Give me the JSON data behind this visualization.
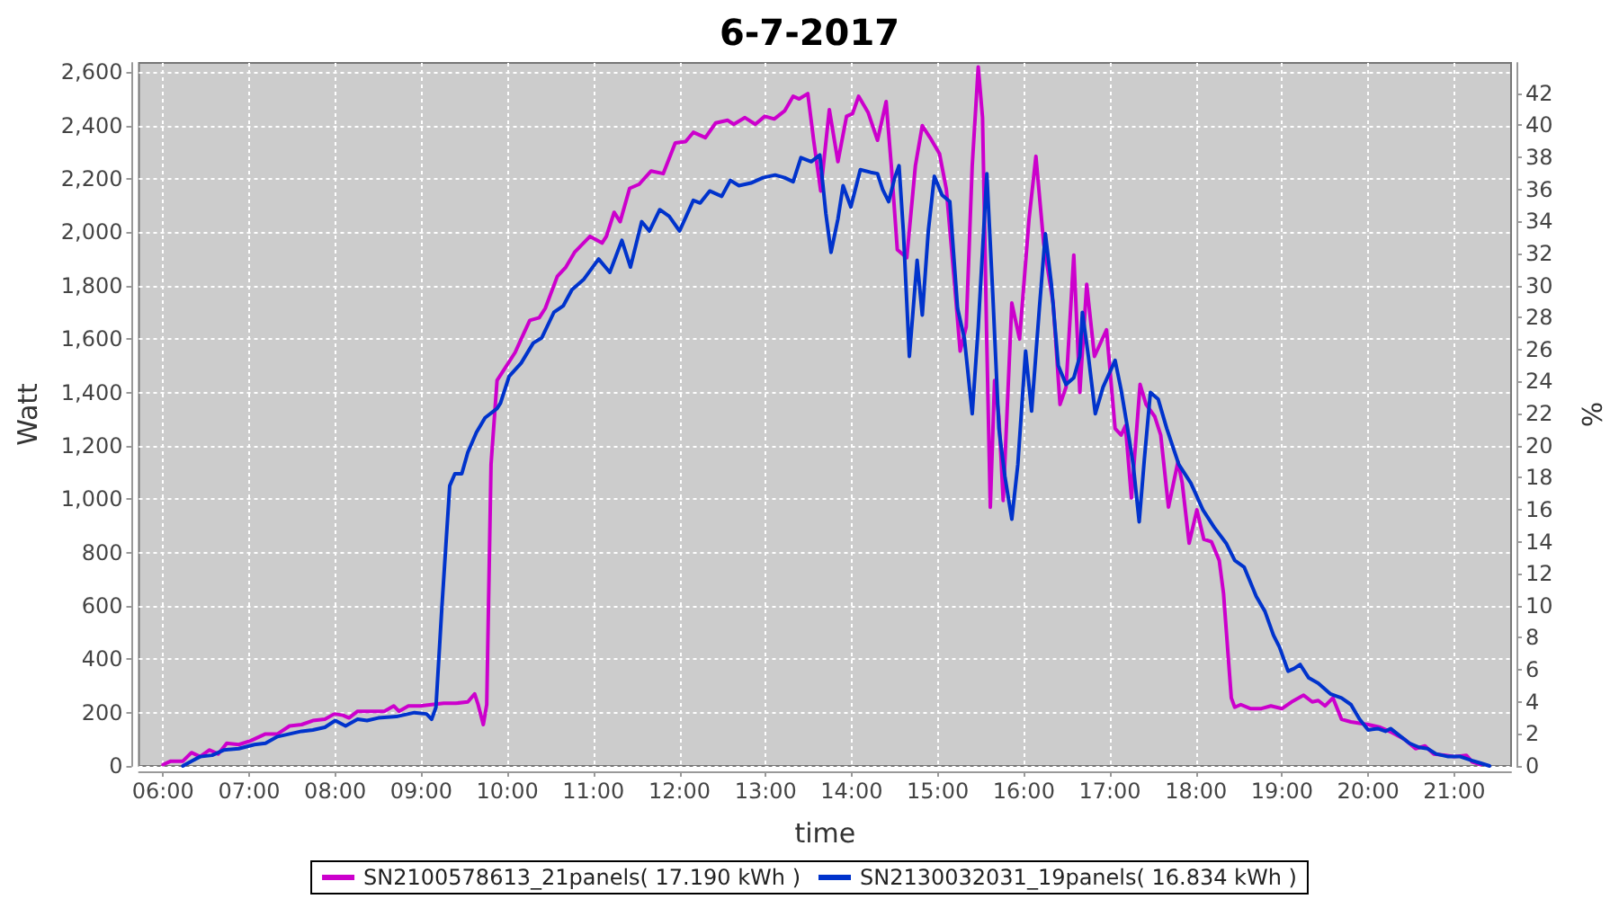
{
  "chart_data": {
    "type": "line",
    "title": "6-7-2017",
    "xlabel": "time",
    "ylabel": "Watt",
    "y2label": "%",
    "xlim": [
      5.72,
      21.66
    ],
    "xticks": [
      {
        "value": 6,
        "label": "06:00"
      },
      {
        "value": 7,
        "label": "07:00"
      },
      {
        "value": 8,
        "label": "08:00"
      },
      {
        "value": 9,
        "label": "09:00"
      },
      {
        "value": 10,
        "label": "10:00"
      },
      {
        "value": 11,
        "label": "11:00"
      },
      {
        "value": 12,
        "label": "12:00"
      },
      {
        "value": 13,
        "label": "13:00"
      },
      {
        "value": 14,
        "label": "14:00"
      },
      {
        "value": 15,
        "label": "15:00"
      },
      {
        "value": 16,
        "label": "16:00"
      },
      {
        "value": 17,
        "label": "17:00"
      },
      {
        "value": 18,
        "label": "18:00"
      },
      {
        "value": 19,
        "label": "19:00"
      },
      {
        "value": 20,
        "label": "20:00"
      },
      {
        "value": 21,
        "label": "21:00"
      }
    ],
    "ylim": [
      0,
      2635
    ],
    "yticks": [
      0,
      200,
      400,
      600,
      800,
      {
        "value": 1000,
        "label": "1,000"
      },
      {
        "value": 1200,
        "label": "1,200"
      },
      {
        "value": 1400,
        "label": "1,400"
      },
      {
        "value": 1600,
        "label": "1,600"
      },
      {
        "value": 1800,
        "label": "1,800"
      },
      {
        "value": 2000,
        "label": "2,000"
      },
      {
        "value": 2200,
        "label": "2,200"
      },
      {
        "value": 2400,
        "label": "2,400"
      },
      {
        "value": 2600,
        "label": "2,600"
      }
    ],
    "y2lim": [
      0,
      43.9
    ],
    "y2ticks": [
      0,
      2,
      4,
      6,
      8,
      10,
      12,
      14,
      16,
      18,
      20,
      22,
      24,
      26,
      28,
      30,
      32,
      34,
      36,
      38,
      40,
      42
    ],
    "grid": true,
    "legend": "bottom",
    "line_style": "solid",
    "series": [
      {
        "name": "SN2100578613_21panels( 17.190 kWh )",
        "color": "#cc00cc",
        "x": [
          6.0,
          6.09,
          6.23,
          6.33,
          6.43,
          6.54,
          6.64,
          6.74,
          6.88,
          7.02,
          7.19,
          7.33,
          7.47,
          7.61,
          7.74,
          7.88,
          7.99,
          8.09,
          8.16,
          8.26,
          8.43,
          8.57,
          8.68,
          8.74,
          8.85,
          8.99,
          9.12,
          9.26,
          9.4,
          9.54,
          9.62,
          9.66,
          9.72,
          9.76,
          9.81,
          9.88,
          9.99,
          10.09,
          10.16,
          10.26,
          10.37,
          10.44,
          10.58,
          10.68,
          10.78,
          10.96,
          11.1,
          11.15,
          11.24,
          11.31,
          11.42,
          11.53,
          11.67,
          11.81,
          11.95,
          12.07,
          12.16,
          12.3,
          12.42,
          12.56,
          12.63,
          12.76,
          12.88,
          12.99,
          13.1,
          13.22,
          13.32,
          13.39,
          13.49,
          13.56,
          13.64,
          13.74,
          13.84,
          13.94,
          14.01,
          14.08,
          14.19,
          14.3,
          14.4,
          14.46,
          14.53,
          14.64,
          14.74,
          14.82,
          14.91,
          15.02,
          15.1,
          15.19,
          15.26,
          15.33,
          15.4,
          15.47,
          15.52,
          15.57,
          15.61,
          15.66,
          15.71,
          15.76,
          15.86,
          15.95,
          16.06,
          16.14,
          16.23,
          16.34,
          16.42,
          16.49,
          16.58,
          16.65,
          16.73,
          16.82,
          16.96,
          17.06,
          17.13,
          17.18,
          17.25,
          17.35,
          17.42,
          17.52,
          17.59,
          17.68,
          17.79,
          17.84,
          17.92,
          18.01,
          18.09,
          18.18,
          18.27,
          18.32,
          18.41,
          18.45,
          18.52,
          18.63,
          18.76,
          18.87,
          19.0,
          19.11,
          19.25,
          19.35,
          19.42,
          19.5,
          19.59,
          19.69,
          19.8,
          20.0,
          20.14,
          20.28,
          20.42,
          20.55,
          20.66,
          20.76,
          20.9,
          21.0,
          21.14,
          21.21,
          21.31
        ],
        "values": [
          5,
          18,
          18,
          50,
          35,
          60,
          45,
          85,
          80,
          95,
          120,
          120,
          150,
          155,
          170,
          175,
          195,
          190,
          180,
          205,
          205,
          205,
          225,
          205,
          225,
          225,
          230,
          235,
          235,
          240,
          270,
          230,
          155,
          230,
          1130,
          1445,
          1500,
          1550,
          1600,
          1670,
          1680,
          1715,
          1835,
          1870,
          1925,
          1985,
          1960,
          1985,
          2075,
          2040,
          2165,
          2180,
          2230,
          2220,
          2335,
          2340,
          2375,
          2355,
          2410,
          2420,
          2405,
          2430,
          2405,
          2435,
          2425,
          2455,
          2510,
          2500,
          2520,
          2340,
          2155,
          2460,
          2265,
          2435,
          2445,
          2510,
          2450,
          2345,
          2490,
          2250,
          1935,
          1905,
          2250,
          2400,
          2355,
          2295,
          2160,
          1825,
          1555,
          1645,
          2250,
          2620,
          2430,
          1580,
          970,
          1445,
          1310,
          995,
          1735,
          1600,
          2050,
          2285,
          1960,
          1735,
          1355,
          1420,
          1915,
          1400,
          1805,
          1535,
          1635,
          1265,
          1240,
          1275,
          1005,
          1430,
          1355,
          1310,
          1240,
          970,
          1140,
          1060,
          835,
          960,
          850,
          840,
          770,
          645,
          255,
          220,
          230,
          215,
          215,
          225,
          215,
          240,
          265,
          240,
          245,
          225,
          255,
          175,
          165,
          155,
          145,
          125,
          100,
          65,
          75,
          45,
          40,
          35,
          40,
          15,
          5
        ]
      },
      {
        "name": "SN2130032031_19panels( 16.834 kWh )",
        "color": "#0033cc",
        "x": [
          6.23,
          6.33,
          6.43,
          6.57,
          6.71,
          6.88,
          7.06,
          7.19,
          7.33,
          7.47,
          7.61,
          7.74,
          7.88,
          8.0,
          8.12,
          8.26,
          8.37,
          8.5,
          8.71,
          8.92,
          9.06,
          9.12,
          9.17,
          9.24,
          9.33,
          9.39,
          9.47,
          9.54,
          9.64,
          9.74,
          9.88,
          9.92,
          10.02,
          10.16,
          10.3,
          10.4,
          10.54,
          10.65,
          10.75,
          10.89,
          11.06,
          11.19,
          11.33,
          11.43,
          11.56,
          11.65,
          11.77,
          11.88,
          12.0,
          12.16,
          12.24,
          12.35,
          12.49,
          12.59,
          12.69,
          12.83,
          12.97,
          13.11,
          13.22,
          13.32,
          13.41,
          13.53,
          13.63,
          13.7,
          13.76,
          13.84,
          13.9,
          13.99,
          14.1,
          14.22,
          14.3,
          14.36,
          14.43,
          14.5,
          14.55,
          14.6,
          14.67,
          14.76,
          14.82,
          14.89,
          14.96,
          15.05,
          15.14,
          15.23,
          15.31,
          15.4,
          15.47,
          15.57,
          15.64,
          15.71,
          15.78,
          15.86,
          15.93,
          16.02,
          16.09,
          16.18,
          16.25,
          16.32,
          16.4,
          16.49,
          16.58,
          16.65,
          16.68,
          16.75,
          16.83,
          16.92,
          17.06,
          17.13,
          17.2,
          17.27,
          17.34,
          17.4,
          17.47,
          17.56,
          17.66,
          17.8,
          17.94,
          18.08,
          18.21,
          18.35,
          18.45,
          18.56,
          18.7,
          18.8,
          18.9,
          18.97,
          19.07,
          19.14,
          19.21,
          19.31,
          19.42,
          19.56,
          19.69,
          19.8,
          19.9,
          20.0,
          20.11,
          20.2,
          20.26,
          20.38,
          20.48,
          20.59,
          20.69,
          20.79,
          20.93,
          21.07,
          21.21,
          21.31,
          21.41
        ],
        "values": [
          0,
          18,
          35,
          40,
          60,
          65,
          80,
          85,
          110,
          120,
          130,
          135,
          145,
          170,
          150,
          175,
          170,
          180,
          185,
          200,
          195,
          175,
          220,
          600,
          1050,
          1095,
          1095,
          1175,
          1250,
          1305,
          1340,
          1360,
          1460,
          1510,
          1585,
          1605,
          1700,
          1725,
          1785,
          1825,
          1900,
          1850,
          1970,
          1870,
          2040,
          2005,
          2085,
          2060,
          2005,
          2120,
          2110,
          2155,
          2135,
          2195,
          2175,
          2185,
          2205,
          2215,
          2205,
          2190,
          2280,
          2265,
          2290,
          2070,
          1925,
          2050,
          2175,
          2095,
          2235,
          2225,
          2220,
          2160,
          2115,
          2205,
          2250,
          2005,
          1535,
          1895,
          1690,
          2005,
          2210,
          2140,
          2115,
          1715,
          1600,
          1320,
          1645,
          2220,
          1760,
          1265,
          1085,
          925,
          1130,
          1555,
          1330,
          1715,
          1995,
          1805,
          1500,
          1430,
          1455,
          1535,
          1700,
          1535,
          1320,
          1420,
          1520,
          1410,
          1275,
          1130,
          915,
          1150,
          1400,
          1375,
          1265,
          1130,
          1060,
          960,
          895,
          835,
          770,
          745,
          635,
          580,
          490,
          445,
          355,
          365,
          380,
          330,
          310,
          270,
          255,
          230,
          175,
          135,
          140,
          130,
          140,
          110,
          85,
          70,
          65,
          45,
          35,
          35,
          20,
          10,
          0
        ]
      }
    ]
  }
}
